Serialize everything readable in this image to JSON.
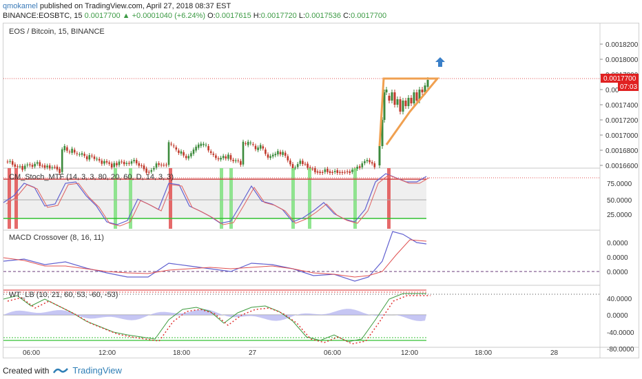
{
  "header": {
    "author": "qmokamel",
    "published": "published on TradingView.com, April 27, 2018 08:37 EST",
    "symbol": "BINANCE:EOSBTC, 15",
    "last": "0.0017700",
    "change": "+0.0001040 (+6.24%)",
    "o_label": "O:",
    "o_value": "0.0017615",
    "h_label": "H:",
    "h_value": "0.0017720",
    "l_label": "L:",
    "l_value": "0.0017536",
    "c_label": "C:",
    "c_value": "0.0017700"
  },
  "chart": {
    "title": "EOS / Bitcoin, 15, BINANCE",
    "price_ticks": [
      "0.0018200",
      "0.0018000",
      "0.0017800",
      "0.00",
      "0.0017400",
      "0.0017200",
      "0.0017000",
      "0.0016800",
      "0.0016600"
    ],
    "price_tick_values": [
      0.00182,
      0.0018,
      0.00178,
      0.00176,
      0.00174,
      0.00172,
      0.0017,
      0.00168,
      0.00166
    ],
    "current_price": "0.0017700",
    "countdown": "07:03",
    "time_labels": [
      "06:00",
      "12:00",
      "18:00",
      "27",
      "06:00",
      "12:00",
      "18:00",
      "28"
    ]
  },
  "indicators": {
    "stoch": {
      "label": "CM_Stoch_MTF (14, 3, 3, 80, 20, 60, D, 14, 3, 3)",
      "ticks": [
        "75.0000",
        "50.0000",
        "25.0000"
      ]
    },
    "macd": {
      "label": "MACD Crossover (8, 16, 11)",
      "ticks": [
        "0.0000",
        "0.0000",
        "0.0000"
      ]
    },
    "wt": {
      "label": "WT_LB (10, 21, 60, 53, -60, -53)",
      "ticks": [
        "40.0000",
        "0.0000",
        "-40.0000",
        "-80.0000"
      ]
    }
  },
  "colors": {
    "up": "#3c8a3c",
    "down": "#c0392b",
    "pattern": "#f0a050",
    "arrow": "#3a7fc8",
    "highlight_green": "#7ee07e",
    "highlight_red": "#e05050"
  },
  "footer": {
    "created_with": "Created with",
    "brand": "TradingView"
  }
}
